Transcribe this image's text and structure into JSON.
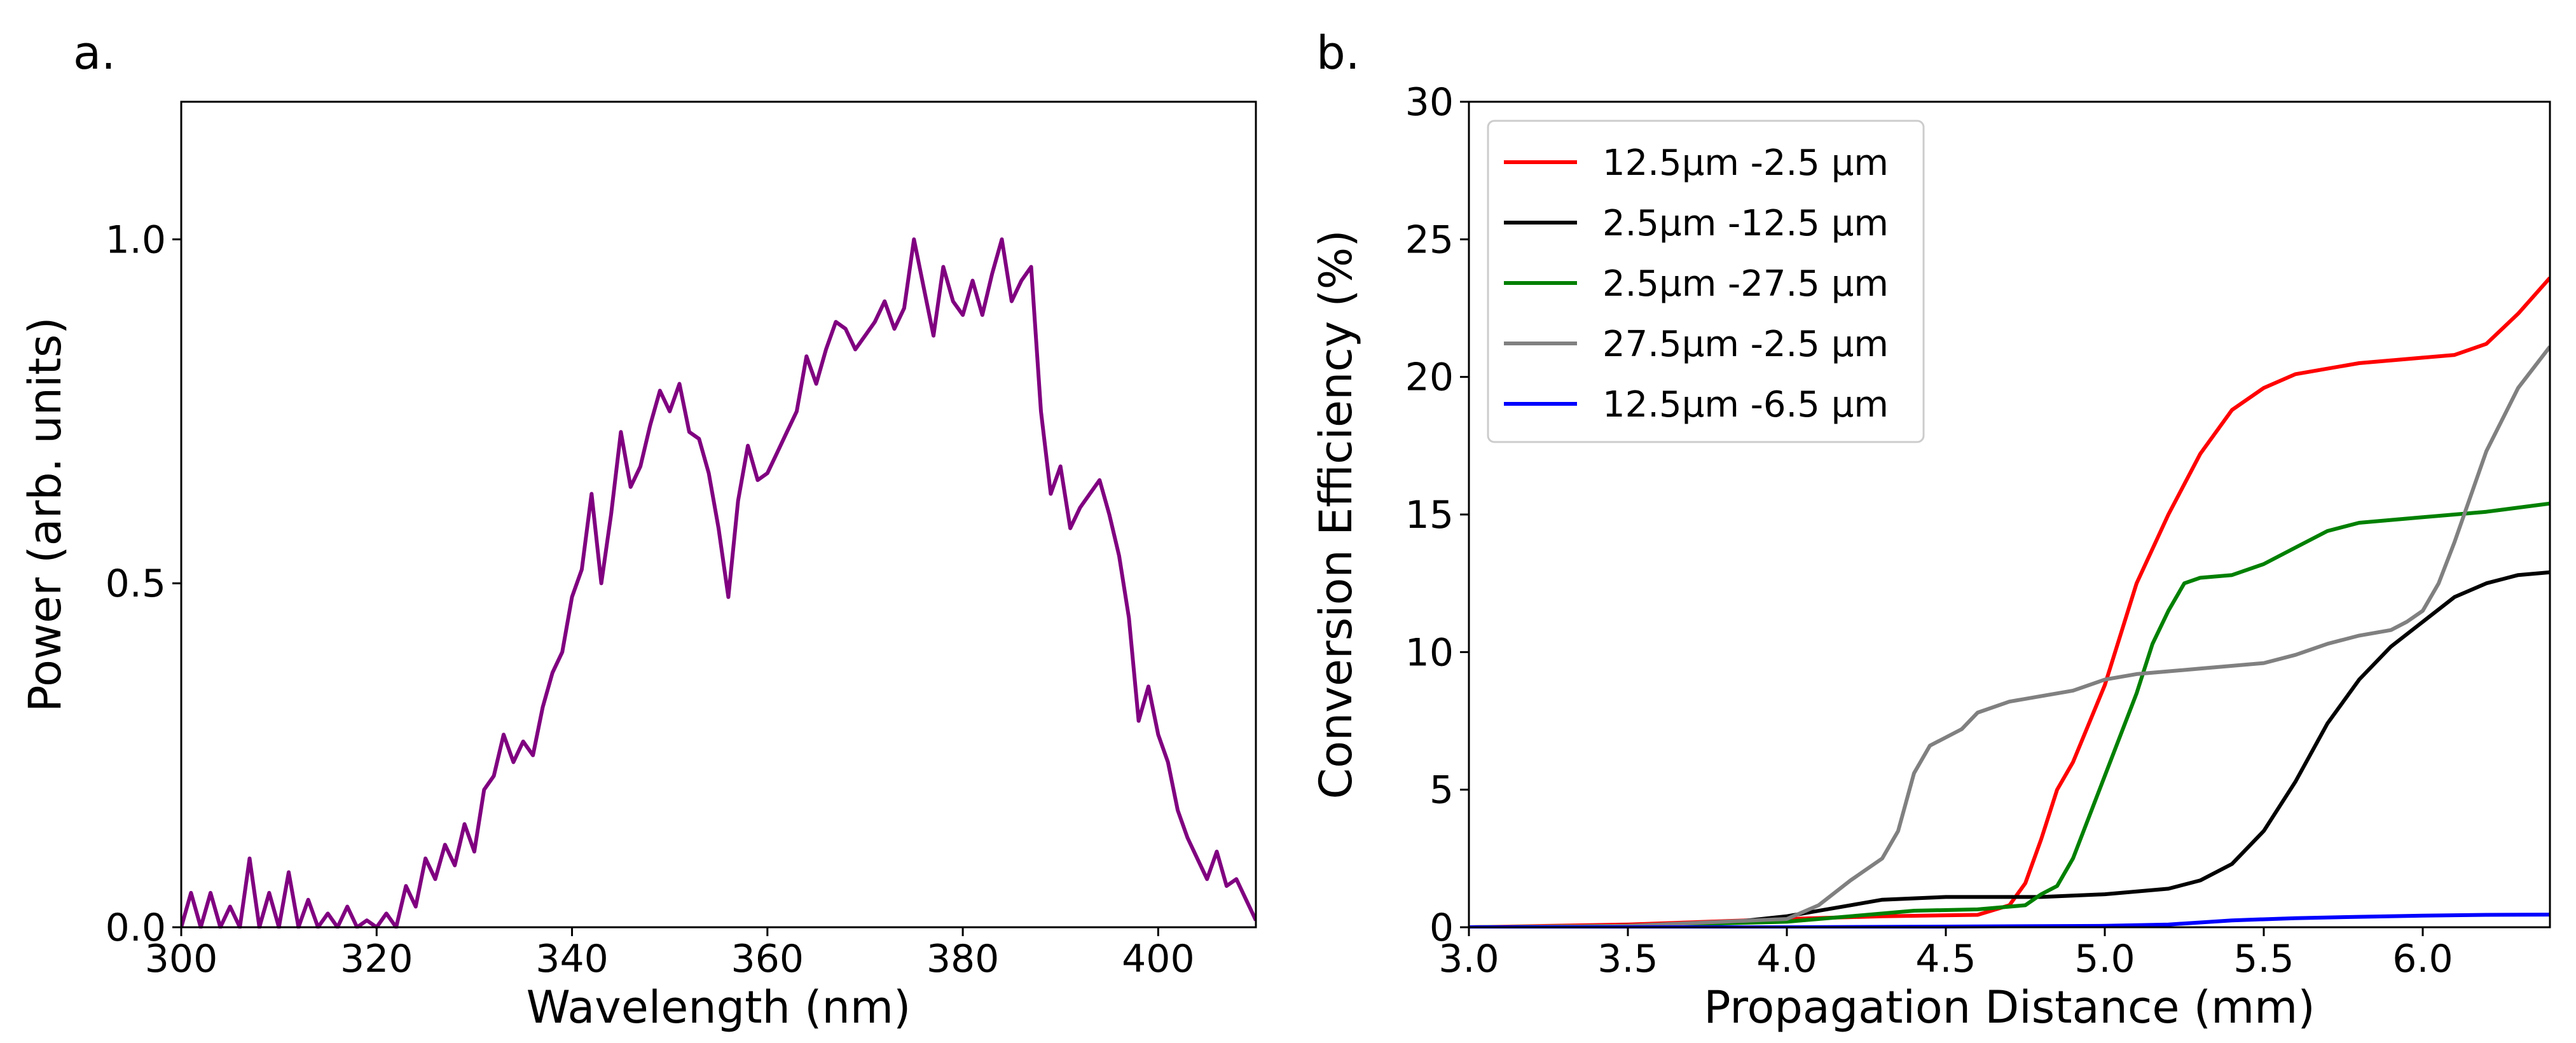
{
  "panels": {
    "a": "a.",
    "b": "b."
  },
  "chart_data": [
    {
      "type": "line",
      "xlabel": "Wavelength (nm)",
      "ylabel": "Power (arb. units)",
      "xlim": [
        300,
        410
      ],
      "ylim": [
        0,
        1.2
      ],
      "x_ticks": [
        300,
        320,
        340,
        360,
        380,
        400
      ],
      "x_tick_labels": [
        "300",
        "320",
        "340",
        "360",
        "380",
        "400"
      ],
      "y_ticks": [
        0.0,
        0.5,
        1.0
      ],
      "y_tick_labels": [
        "0.0",
        "0.5",
        "1.0"
      ],
      "grid": false,
      "series": [
        {
          "color": "#800080",
          "points": [
            [
              300,
              0.0
            ],
            [
              301,
              0.05
            ],
            [
              302,
              0.0
            ],
            [
              303,
              0.05
            ],
            [
              304,
              0.0
            ],
            [
              305,
              0.03
            ],
            [
              306,
              0.0
            ],
            [
              307,
              0.1
            ],
            [
              308,
              0.0
            ],
            [
              309,
              0.05
            ],
            [
              310,
              0.0
            ],
            [
              311,
              0.08
            ],
            [
              312,
              0.0
            ],
            [
              313,
              0.04
            ],
            [
              314,
              0.0
            ],
            [
              315,
              0.02
            ],
            [
              316,
              0.0
            ],
            [
              317,
              0.03
            ],
            [
              318,
              0.0
            ],
            [
              319,
              0.01
            ],
            [
              320,
              0.0
            ],
            [
              321,
              0.02
            ],
            [
              322,
              0.0
            ],
            [
              323,
              0.06
            ],
            [
              324,
              0.03
            ],
            [
              325,
              0.1
            ],
            [
              326,
              0.07
            ],
            [
              327,
              0.12
            ],
            [
              328,
              0.09
            ],
            [
              329,
              0.15
            ],
            [
              330,
              0.11
            ],
            [
              331,
              0.2
            ],
            [
              332,
              0.22
            ],
            [
              333,
              0.28
            ],
            [
              334,
              0.24
            ],
            [
              335,
              0.27
            ],
            [
              336,
              0.25
            ],
            [
              337,
              0.32
            ],
            [
              338,
              0.37
            ],
            [
              339,
              0.4
            ],
            [
              340,
              0.48
            ],
            [
              341,
              0.52
            ],
            [
              342,
              0.63
            ],
            [
              343,
              0.5
            ],
            [
              344,
              0.6
            ],
            [
              345,
              0.72
            ],
            [
              346,
              0.64
            ],
            [
              347,
              0.67
            ],
            [
              348,
              0.73
            ],
            [
              349,
              0.78
            ],
            [
              350,
              0.75
            ],
            [
              351,
              0.79
            ],
            [
              352,
              0.72
            ],
            [
              353,
              0.71
            ],
            [
              354,
              0.66
            ],
            [
              355,
              0.58
            ],
            [
              356,
              0.48
            ],
            [
              357,
              0.62
            ],
            [
              358,
              0.7
            ],
            [
              359,
              0.65
            ],
            [
              360,
              0.66
            ],
            [
              361,
              0.69
            ],
            [
              362,
              0.72
            ],
            [
              363,
              0.75
            ],
            [
              364,
              0.83
            ],
            [
              365,
              0.79
            ],
            [
              366,
              0.84
            ],
            [
              367,
              0.88
            ],
            [
              368,
              0.87
            ],
            [
              369,
              0.84
            ],
            [
              370,
              0.86
            ],
            [
              371,
              0.88
            ],
            [
              372,
              0.91
            ],
            [
              373,
              0.87
            ],
            [
              374,
              0.9
            ],
            [
              375,
              1.0
            ],
            [
              376,
              0.93
            ],
            [
              377,
              0.86
            ],
            [
              378,
              0.96
            ],
            [
              379,
              0.91
            ],
            [
              380,
              0.89
            ],
            [
              381,
              0.94
            ],
            [
              382,
              0.89
            ],
            [
              383,
              0.95
            ],
            [
              384,
              1.0
            ],
            [
              385,
              0.91
            ],
            [
              386,
              0.94
            ],
            [
              387,
              0.96
            ],
            [
              388,
              0.75
            ],
            [
              389,
              0.63
            ],
            [
              390,
              0.67
            ],
            [
              391,
              0.58
            ],
            [
              392,
              0.61
            ],
            [
              393,
              0.63
            ],
            [
              394,
              0.65
            ],
            [
              395,
              0.6
            ],
            [
              396,
              0.54
            ],
            [
              397,
              0.45
            ],
            [
              398,
              0.3
            ],
            [
              399,
              0.35
            ],
            [
              400,
              0.28
            ],
            [
              401,
              0.24
            ],
            [
              402,
              0.17
            ],
            [
              403,
              0.13
            ],
            [
              404,
              0.1
            ],
            [
              405,
              0.07
            ],
            [
              406,
              0.11
            ],
            [
              407,
              0.06
            ],
            [
              408,
              0.07
            ],
            [
              409,
              0.04
            ],
            [
              410,
              0.01
            ]
          ]
        }
      ]
    },
    {
      "type": "line",
      "xlabel": "Propagation Distance (mm)",
      "ylabel": "Conversion Efficiency (%)",
      "xlim": [
        3.0,
        6.4
      ],
      "ylim": [
        0,
        30
      ],
      "x_ticks": [
        3.0,
        3.5,
        4.0,
        4.5,
        5.0,
        5.5,
        6.0
      ],
      "x_tick_labels": [
        "3.0",
        "3.5",
        "4.0",
        "4.5",
        "5.0",
        "5.5",
        "6.0"
      ],
      "y_ticks": [
        0,
        5,
        10,
        15,
        20,
        25,
        30
      ],
      "y_tick_labels": [
        "0",
        "5",
        "10",
        "15",
        "20",
        "25",
        "30"
      ],
      "grid": false,
      "legend": "top-left",
      "series": [
        {
          "name": "12.5μm -2.5 μm",
          "color": "#ff0000",
          "points": [
            [
              3.0,
              0.0
            ],
            [
              3.5,
              0.1
            ],
            [
              4.0,
              0.3
            ],
            [
              4.3,
              0.4
            ],
            [
              4.6,
              0.45
            ],
            [
              4.7,
              0.8
            ],
            [
              4.75,
              1.6
            ],
            [
              4.8,
              3.2
            ],
            [
              4.85,
              5.0
            ],
            [
              4.9,
              6.0
            ],
            [
              5.0,
              8.8
            ],
            [
              5.1,
              12.5
            ],
            [
              5.2,
              15.0
            ],
            [
              5.3,
              17.2
            ],
            [
              5.4,
              18.8
            ],
            [
              5.5,
              19.6
            ],
            [
              5.6,
              20.1
            ],
            [
              5.8,
              20.5
            ],
            [
              6.0,
              20.7
            ],
            [
              6.1,
              20.8
            ],
            [
              6.2,
              21.2
            ],
            [
              6.3,
              22.3
            ],
            [
              6.4,
              23.6
            ]
          ]
        },
        {
          "name": "2.5μm -12.5 μm",
          "color": "#000000",
          "points": [
            [
              3.0,
              0.0
            ],
            [
              3.5,
              0.05
            ],
            [
              3.8,
              0.15
            ],
            [
              4.0,
              0.4
            ],
            [
              4.2,
              0.8
            ],
            [
              4.3,
              1.0
            ],
            [
              4.5,
              1.1
            ],
            [
              4.8,
              1.1
            ],
            [
              5.0,
              1.2
            ],
            [
              5.2,
              1.4
            ],
            [
              5.3,
              1.7
            ],
            [
              5.4,
              2.3
            ],
            [
              5.5,
              3.5
            ],
            [
              5.6,
              5.3
            ],
            [
              5.7,
              7.4
            ],
            [
              5.8,
              9.0
            ],
            [
              5.9,
              10.2
            ],
            [
              6.0,
              11.1
            ],
            [
              6.1,
              12.0
            ],
            [
              6.2,
              12.5
            ],
            [
              6.3,
              12.8
            ],
            [
              6.4,
              12.9
            ]
          ]
        },
        {
          "name": "2.5μm -27.5 μm",
          "color": "#008000",
          "points": [
            [
              3.0,
              0.0
            ],
            [
              3.5,
              0.05
            ],
            [
              4.0,
              0.2
            ],
            [
              4.2,
              0.4
            ],
            [
              4.4,
              0.6
            ],
            [
              4.6,
              0.65
            ],
            [
              4.75,
              0.8
            ],
            [
              4.8,
              1.2
            ],
            [
              4.85,
              1.5
            ],
            [
              4.9,
              2.5
            ],
            [
              5.0,
              5.5
            ],
            [
              5.1,
              8.5
            ],
            [
              5.15,
              10.3
            ],
            [
              5.2,
              11.5
            ],
            [
              5.25,
              12.5
            ],
            [
              5.3,
              12.7
            ],
            [
              5.4,
              12.8
            ],
            [
              5.5,
              13.2
            ],
            [
              5.6,
              13.8
            ],
            [
              5.7,
              14.4
            ],
            [
              5.8,
              14.7
            ],
            [
              6.0,
              14.9
            ],
            [
              6.2,
              15.1
            ],
            [
              6.4,
              15.4
            ]
          ]
        },
        {
          "name": "27.5μm -2.5 μm",
          "color": "#808080",
          "points": [
            [
              3.0,
              0.0
            ],
            [
              3.5,
              0.05
            ],
            [
              4.0,
              0.3
            ],
            [
              4.1,
              0.8
            ],
            [
              4.2,
              1.7
            ],
            [
              4.3,
              2.5
            ],
            [
              4.35,
              3.5
            ],
            [
              4.4,
              5.6
            ],
            [
              4.45,
              6.6
            ],
            [
              4.5,
              6.9
            ],
            [
              4.55,
              7.2
            ],
            [
              4.6,
              7.8
            ],
            [
              4.7,
              8.2
            ],
            [
              4.8,
              8.4
            ],
            [
              4.9,
              8.6
            ],
            [
              5.0,
              9.0
            ],
            [
              5.1,
              9.2
            ],
            [
              5.3,
              9.4
            ],
            [
              5.5,
              9.6
            ],
            [
              5.6,
              9.9
            ],
            [
              5.7,
              10.3
            ],
            [
              5.8,
              10.6
            ],
            [
              5.9,
              10.8
            ],
            [
              5.95,
              11.1
            ],
            [
              6.0,
              11.5
            ],
            [
              6.05,
              12.5
            ],
            [
              6.1,
              14.0
            ],
            [
              6.2,
              17.3
            ],
            [
              6.3,
              19.6
            ],
            [
              6.4,
              21.1
            ]
          ]
        },
        {
          "name": "12.5μm -6.5 μm",
          "color": "#0000ff",
          "points": [
            [
              3.0,
              0.0
            ],
            [
              4.0,
              0.0
            ],
            [
              5.0,
              0.05
            ],
            [
              5.2,
              0.1
            ],
            [
              5.4,
              0.25
            ],
            [
              5.6,
              0.33
            ],
            [
              5.8,
              0.38
            ],
            [
              6.0,
              0.42
            ],
            [
              6.2,
              0.45
            ],
            [
              6.4,
              0.46
            ]
          ]
        }
      ]
    }
  ]
}
